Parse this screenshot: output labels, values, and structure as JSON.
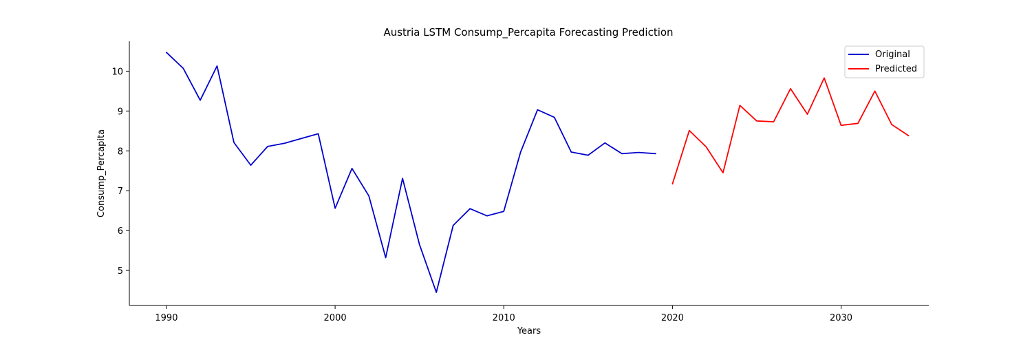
{
  "chart_data": {
    "type": "line",
    "title": "Austria LSTM Consump_Percapita Forecasting Prediction",
    "xlabel": "Years",
    "ylabel": "Consump_Percapita",
    "xlim": [
      1987.8,
      2035.2
    ],
    "ylim": [
      4.12,
      10.75
    ],
    "x_ticks": [
      1990,
      2000,
      2010,
      2020,
      2030
    ],
    "y_ticks": [
      5,
      6,
      7,
      8,
      9,
      10
    ],
    "grid": false,
    "legend_position": "top-right",
    "series": [
      {
        "name": "Original",
        "color": "#0000cd",
        "x": [
          1990,
          1991,
          1992,
          1993,
          1994,
          1995,
          1996,
          1997,
          1998,
          1999,
          2000,
          2001,
          2002,
          2003,
          2004,
          2005,
          2006,
          2007,
          2008,
          2009,
          2010,
          2011,
          2012,
          2013,
          2014,
          2015,
          2016,
          2017,
          2018,
          2019
        ],
        "y": [
          10.47,
          10.07,
          9.27,
          10.13,
          8.21,
          7.64,
          8.11,
          8.19,
          8.31,
          8.43,
          6.56,
          7.56,
          6.87,
          5.32,
          7.31,
          5.65,
          4.45,
          6.13,
          6.55,
          6.37,
          6.48,
          7.97,
          9.03,
          8.84,
          7.97,
          7.89,
          8.2,
          7.93,
          7.96,
          7.93
        ]
      },
      {
        "name": "Predicted",
        "color": "#ff0000",
        "x": [
          2020,
          2021,
          2022,
          2023,
          2024,
          2025,
          2026,
          2027,
          2028,
          2029,
          2030,
          2031,
          2032,
          2033,
          2034
        ],
        "y": [
          7.17,
          8.51,
          8.1,
          7.45,
          9.14,
          8.75,
          8.73,
          9.56,
          8.92,
          9.83,
          8.64,
          8.69,
          9.5,
          8.66,
          8.38
        ]
      }
    ]
  }
}
